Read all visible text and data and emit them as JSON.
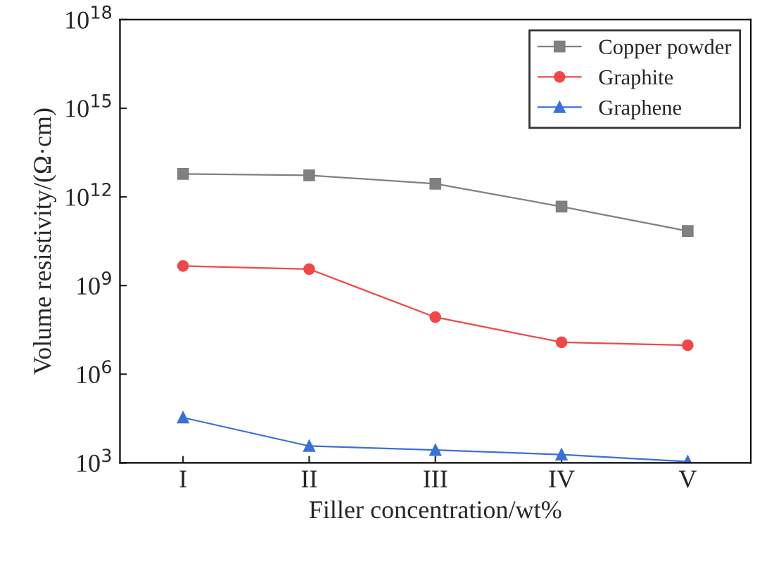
{
  "chart_data": {
    "type": "line",
    "xlabel": "Filler concentration/wt%",
    "ylabel": "Volume resistivity/(Ω·cm)",
    "categories": [
      "I",
      "II",
      "III",
      "IV",
      "V"
    ],
    "series": [
      {
        "name": "Copper powder",
        "color": "#808080",
        "marker": "square",
        "values": [
          6000000000000.0,
          5400000000000.0,
          2800000000000.0,
          470000000000.0,
          70000000000.0
        ]
      },
      {
        "name": "Graphite",
        "color": "#f04848",
        "marker": "circle",
        "values": [
          4600000000.0,
          3600000000.0,
          85000000.0,
          12000000.0,
          9500000.0
        ]
      },
      {
        "name": "Graphene",
        "color": "#3a70d8",
        "marker": "triangle",
        "values": [
          34000.0,
          3700.0,
          2700.0,
          1900.0,
          1100.0
        ]
      }
    ],
    "log": "y",
    "ylim": [
      1000,
      1e+18
    ],
    "yticks": [
      {
        "value": 1000,
        "label": "10$^{3}$"
      },
      {
        "value": 1000000.0,
        "label": "10$^{6}$"
      },
      {
        "value": 1000000000.0,
        "label": "10$^{9}$"
      },
      {
        "value": 1000000000000.0,
        "label": "10$^{12}$"
      },
      {
        "value": 1000000000000000.0,
        "label": "10$^{15}$"
      },
      {
        "value": 1e+18,
        "label": "10$^{18}$"
      }
    ],
    "grid": false,
    "legend": "top right",
    "line_style": "solid"
  }
}
